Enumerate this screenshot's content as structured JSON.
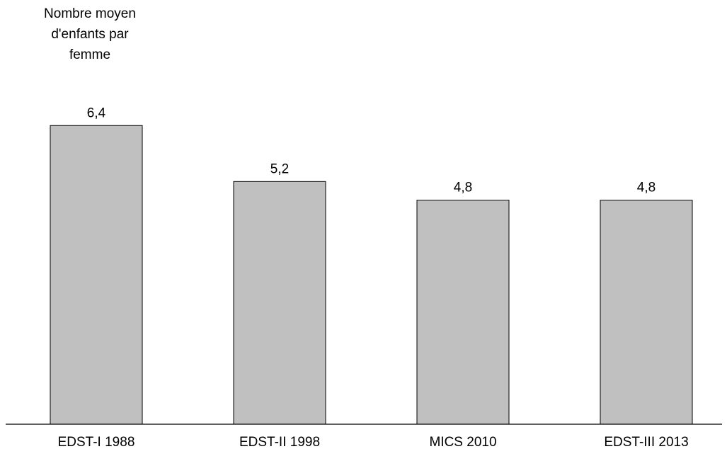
{
  "chart_data": {
    "type": "bar",
    "ylabel_lines": [
      "Nombre moyen",
      "d'enfants par",
      "femme"
    ],
    "categories": [
      "EDST-I 1988",
      "EDST-II 1998",
      "MICS 2010",
      "EDST-III 2013"
    ],
    "values": [
      6.4,
      5.2,
      4.8,
      4.8
    ],
    "value_labels": [
      "6,4",
      "5,2",
      "4,8",
      "4,8"
    ],
    "ylim": [
      0,
      9.09
    ],
    "grid": false,
    "legend": "none",
    "bar_color": "#c0c0c0",
    "bar_stroke": "#000000"
  }
}
